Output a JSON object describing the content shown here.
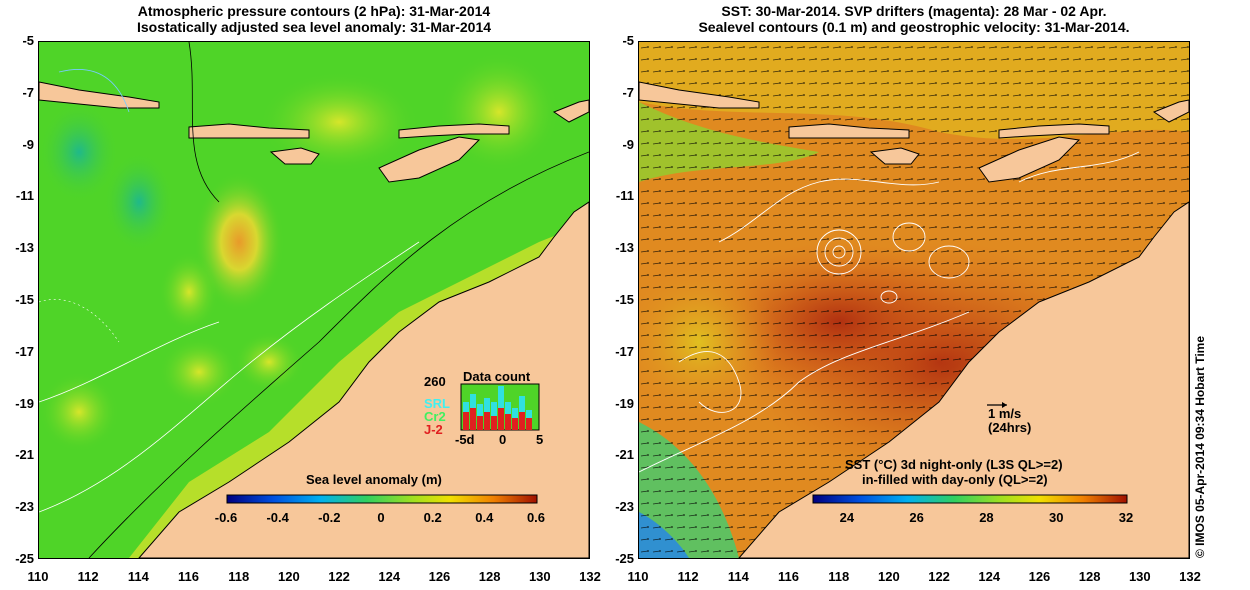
{
  "colors": {
    "land": "#f7c79a",
    "sla_bg": "#4fd428",
    "sst_bg": "#d9641a"
  },
  "left_map": {
    "title_line1": "Atmospheric pressure contours (2 hPa): 31-Mar-2014",
    "title_line2": "Isostatically adjusted sea level anomaly: 31-Mar-2014",
    "yticks": [
      "-5",
      "-7",
      "-9",
      "-11",
      "-13",
      "-15",
      "-17",
      "-19",
      "-21",
      "-23",
      "-25"
    ],
    "xticks": [
      "110",
      "112",
      "114",
      "116",
      "118",
      "120",
      "122",
      "124",
      "126",
      "128",
      "130",
      "132"
    ],
    "data_count_title": "Data count",
    "data_count_max": "260",
    "data_count_sources": [
      "SRL",
      "Cr2",
      "J-2"
    ],
    "data_count_axis": [
      "-5d",
      "0",
      "5"
    ],
    "colorbar_title": "Sea level anomaly (m)",
    "colorbar_ticks": [
      "-0.6",
      "-0.4",
      "-0.2",
      "0",
      "0.2",
      "0.4",
      "0.6"
    ],
    "colorbar_range": [
      -0.6,
      0.6
    ]
  },
  "right_map": {
    "title_line1": "SST: 30-Mar-2014. SVP drifters (magenta): 28 Mar - 02 Apr.",
    "title_line2": "Sealevel contours (0.1 m) and geostrophic velocity: 31-Mar-2014.",
    "yticks": [
      "-5",
      "-7",
      "-9",
      "-11",
      "-13",
      "-15",
      "-17",
      "-19",
      "-21",
      "-23",
      "-25"
    ],
    "xticks": [
      "110",
      "112",
      "114",
      "116",
      "118",
      "120",
      "122",
      "124",
      "126",
      "128",
      "130",
      "132"
    ],
    "scale_label": "1 m/s",
    "scale_sublabel": "(24hrs)",
    "colorbar_title1": "SST (°C)  3d night-only (L3S QL>=2)",
    "colorbar_title2": "in-filled with day-only (QL>=2)",
    "colorbar_ticks": [
      "24",
      "26",
      "28",
      "30",
      "32"
    ],
    "colorbar_range": [
      23,
      32
    ]
  },
  "copyright": "© IMOS 05-Apr-2014 09:34 Hobart Time"
}
